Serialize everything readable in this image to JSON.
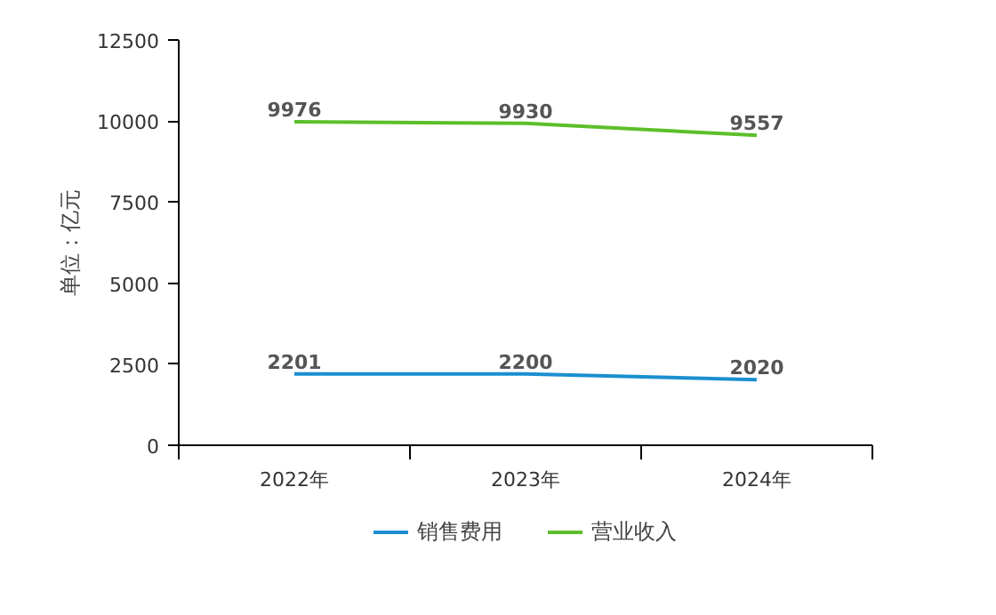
{
  "chart_data": {
    "type": "line",
    "ylabel": "单位：亿元",
    "categories": [
      "2022年",
      "2023年",
      "2024年"
    ],
    "series": [
      {
        "name": "销售费用",
        "color": "#1a8fd0",
        "values": [
          2201,
          2200,
          2020
        ]
      },
      {
        "name": "营业收入",
        "color": "#5cbf2a",
        "values": [
          9976,
          9930,
          9557
        ]
      }
    ],
    "ylim": [
      0,
      12500
    ],
    "yticks": [
      0,
      2500,
      5000,
      7500,
      10000,
      12500
    ],
    "grid": false,
    "legend": "bottom",
    "data_labels": true,
    "marker": "none",
    "line_style": "solid"
  }
}
